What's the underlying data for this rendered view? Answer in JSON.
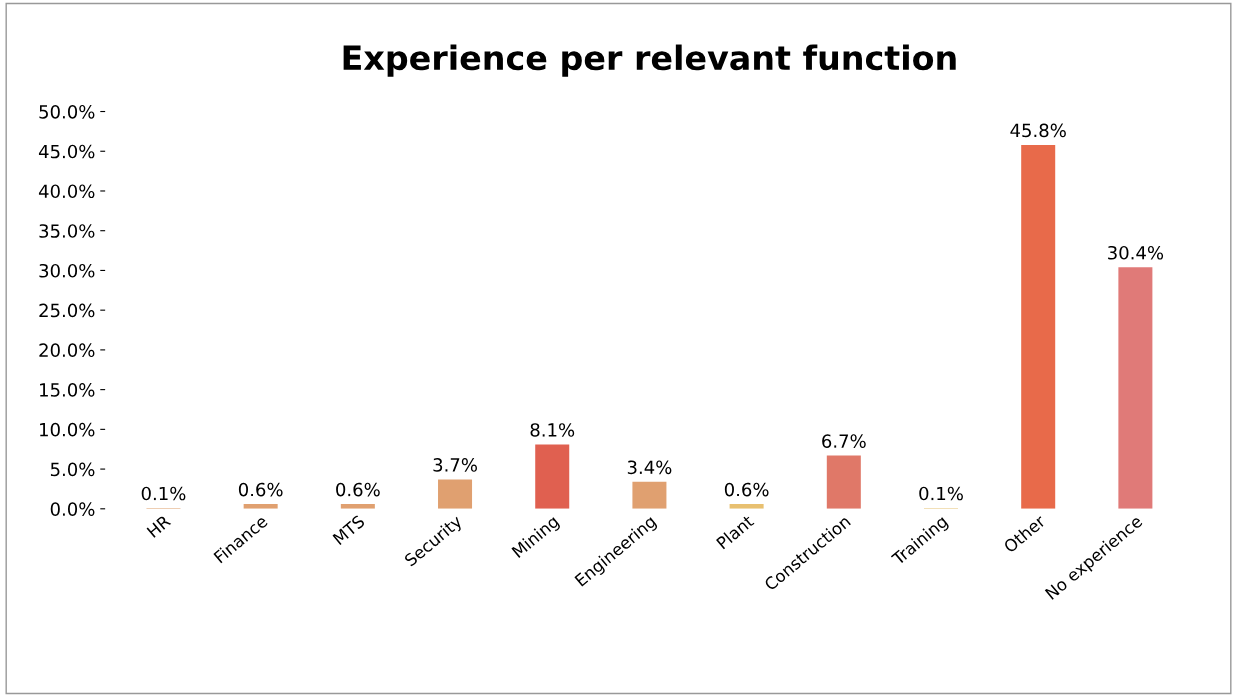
{
  "chart_data": {
    "type": "bar",
    "title": "Experience per relevant function",
    "categories": [
      "HR",
      "Finance",
      "MTS",
      "Security",
      "Mining",
      "Engineering",
      "Plant",
      "Construction",
      "Training",
      "Other",
      "No experience"
    ],
    "values": [
      0.1,
      0.6,
      0.6,
      3.7,
      8.1,
      3.4,
      0.6,
      6.7,
      0.1,
      45.8,
      30.4
    ],
    "value_labels": [
      "0.1%",
      "0.6%",
      "0.6%",
      "3.7%",
      "8.1%",
      "3.4%",
      "0.6%",
      "6.7%",
      "0.1%",
      "45.8%",
      "30.4%"
    ],
    "colors": [
      "#e0a878",
      "#e0a070",
      "#e0a070",
      "#e0a070",
      "#e06050",
      "#e0a070",
      "#e8c070",
      "#e07868",
      "#e8c880",
      "#e86a4a",
      "#e07a78"
    ],
    "ylim": [
      0,
      50
    ],
    "yticks": [
      {
        "value": 0,
        "label": "0.0%"
      },
      {
        "value": 5,
        "label": "5.0%"
      },
      {
        "value": 10,
        "label": "10.0%"
      },
      {
        "value": 15,
        "label": "15.0%"
      },
      {
        "value": 20,
        "label": "20.0%"
      },
      {
        "value": 25,
        "label": "25.0%"
      },
      {
        "value": 30,
        "label": "30.0%"
      },
      {
        "value": 35,
        "label": "35.0%"
      },
      {
        "value": 40,
        "label": "40.0%"
      },
      {
        "value": 45,
        "label": "45.0%"
      },
      {
        "value": 50,
        "label": "50.0%"
      }
    ],
    "grid": false,
    "legend": false
  }
}
